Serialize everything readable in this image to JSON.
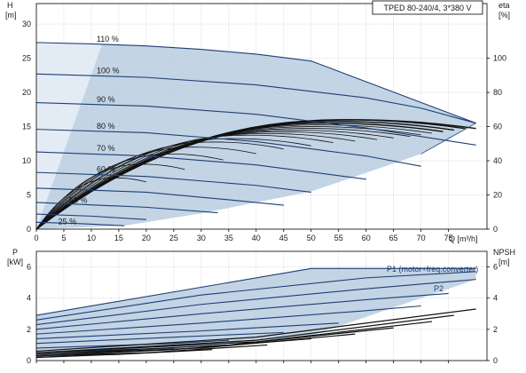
{
  "title": "TPED 80-240/4, 3*380 V",
  "colors": {
    "envelope_fill": "#b9cde0",
    "curve": "#1e3f74",
    "eta": "#111111",
    "grid": "#b9b9b9",
    "axis": "#000000"
  },
  "chart_data": [
    {
      "type": "line",
      "name": "QH",
      "xlabel": "Q [m³/h]",
      "ylabel_left": "H",
      "ylabel_left_unit": "[m]",
      "ylabel_right": "eta",
      "ylabel_right_unit": "[%]",
      "x_ticks": [
        0,
        5,
        10,
        15,
        20,
        25,
        30,
        35,
        40,
        45,
        50,
        55,
        60,
        65,
        70,
        75
      ],
      "y_left_ticks": [
        0,
        5,
        10,
        15,
        20,
        25,
        30
      ],
      "y_right_ticks": [
        0,
        20,
        40,
        60,
        80,
        100
      ],
      "xlim": [
        0,
        82
      ],
      "ylim_left": [
        0,
        33
      ],
      "ylim_right": [
        0,
        132
      ],
      "grid": true,
      "head_curves": [
        {
          "label": "110 %",
          "x": [
            0,
            10,
            20,
            30,
            40,
            50,
            80
          ],
          "y": [
            27.3,
            27.1,
            26.8,
            26.3,
            25.6,
            24.6,
            15.5
          ]
        },
        {
          "label": "100 %",
          "x": [
            0,
            20,
            40,
            60,
            70,
            80
          ],
          "y": [
            22.7,
            22.2,
            21.1,
            19.2,
            17.7,
            15.5
          ]
        },
        {
          "label": "90 %",
          "x": [
            0,
            20,
            40,
            60,
            80
          ],
          "y": [
            18.5,
            18.0,
            16.8,
            14.8,
            12.3
          ]
        },
        {
          "label": "80 %",
          "x": [
            0,
            20,
            40,
            60,
            70
          ],
          "y": [
            14.6,
            14.1,
            12.8,
            10.7,
            9.2
          ]
        },
        {
          "label": "70 %",
          "x": [
            0,
            20,
            40,
            60
          ],
          "y": [
            11.3,
            10.7,
            9.4,
            7.3
          ]
        },
        {
          "label": "60 %",
          "x": [
            0,
            20,
            40,
            50
          ],
          "y": [
            8.3,
            7.7,
            6.4,
            5.4
          ]
        },
        {
          "label": "",
          "x": [
            0,
            20,
            35,
            45
          ],
          "y": [
            6.0,
            5.4,
            4.3,
            3.5
          ]
        },
        {
          "label": "",
          "x": [
            0,
            20,
            33
          ],
          "y": [
            3.9,
            3.2,
            2.4
          ]
        },
        {
          "label": "",
          "x": [
            0,
            10,
            20
          ],
          "y": [
            2.2,
            1.9,
            1.4
          ]
        },
        {
          "label": "",
          "x": [
            0,
            8,
            16
          ],
          "y": [
            1.0,
            0.8,
            0.5
          ]
        }
      ],
      "percent_labels": [
        "110 %",
        "100 %",
        "90 %",
        "80 %",
        "70 %",
        "60 %",
        "50 %",
        "25 %"
      ],
      "efficiency_curves_note": "",
      "efficiency_peak_eta": [
        64,
        64,
        63,
        62,
        61,
        60,
        59,
        58,
        57,
        56,
        55,
        53,
        51,
        48,
        44,
        38,
        30
      ],
      "efficiency_end_q": [
        80,
        78,
        76,
        74,
        72,
        70,
        68,
        65,
        62,
        58,
        54,
        50,
        45,
        40,
        34,
        27,
        20
      ],
      "efficiency_npsh_right_ticks": [
        0,
        20,
        40,
        60,
        80,
        100
      ]
    },
    {
      "type": "line",
      "name": "P",
      "ylabel_left": "P",
      "ylabel_left_unit": "[kW]",
      "ylabel_right": "NPSH",
      "ylabel_right_unit": "[m]",
      "y_left_ticks": [
        0,
        2,
        4,
        6
      ],
      "y_right_ticks": [
        0,
        2,
        4,
        6
      ],
      "ylim_left": [
        0,
        7
      ],
      "grid": true,
      "legend": [
        "P1 (motor+freq.converter)",
        "P2"
      ],
      "power_curves": [
        {
          "x": [
            0,
            50,
            80
          ],
          "y": [
            2.9,
            5.9,
            5.9
          ]
        },
        {
          "x": [
            0,
            30,
            60,
            80
          ],
          "y": [
            2.6,
            4.2,
            5.3,
            5.7
          ]
        },
        {
          "x": [
            0,
            30,
            60,
            80
          ],
          "y": [
            2.3,
            3.6,
            4.6,
            5.2
          ]
        },
        {
          "x": [
            0,
            30,
            60,
            75
          ],
          "y": [
            2.0,
            3.0,
            3.9,
            4.3
          ]
        },
        {
          "x": [
            0,
            30,
            60,
            70
          ],
          "y": [
            1.7,
            2.4,
            3.2,
            3.5
          ]
        },
        {
          "x": [
            0,
            30,
            55
          ],
          "y": [
            1.4,
            1.9,
            2.4
          ]
        },
        {
          "x": [
            0,
            25,
            45
          ],
          "y": [
            1.1,
            1.5,
            1.8
          ]
        },
        {
          "x": [
            0,
            25,
            35
          ],
          "y": [
            0.8,
            1.1,
            1.3
          ]
        },
        {
          "x": [
            0,
            15,
            25
          ],
          "y": [
            0.5,
            0.7,
            0.8
          ]
        },
        {
          "x": [
            0,
            10,
            15
          ],
          "y": [
            0.2,
            0.35,
            0.4
          ]
        }
      ],
      "npsh_curves": [
        {
          "x": [
            0,
            40,
            80
          ],
          "y": [
            0.6,
            1.5,
            3.3
          ]
        },
        {
          "x": [
            0,
            40,
            76
          ],
          "y": [
            0.5,
            1.3,
            2.9
          ]
        },
        {
          "x": [
            0,
            40,
            72
          ],
          "y": [
            0.5,
            1.2,
            2.5
          ]
        },
        {
          "x": [
            0,
            35,
            65
          ],
          "y": [
            0.4,
            1.0,
            2.1
          ]
        },
        {
          "x": [
            0,
            30,
            58
          ],
          "y": [
            0.4,
            0.8,
            1.7
          ]
        },
        {
          "x": [
            0,
            25,
            50
          ],
          "y": [
            0.3,
            0.7,
            1.4
          ]
        },
        {
          "x": [
            0,
            20,
            42
          ],
          "y": [
            0.3,
            0.5,
            1.0
          ]
        },
        {
          "x": [
            0,
            15,
            32
          ],
          "y": [
            0.2,
            0.4,
            0.7
          ]
        }
      ]
    }
  ]
}
